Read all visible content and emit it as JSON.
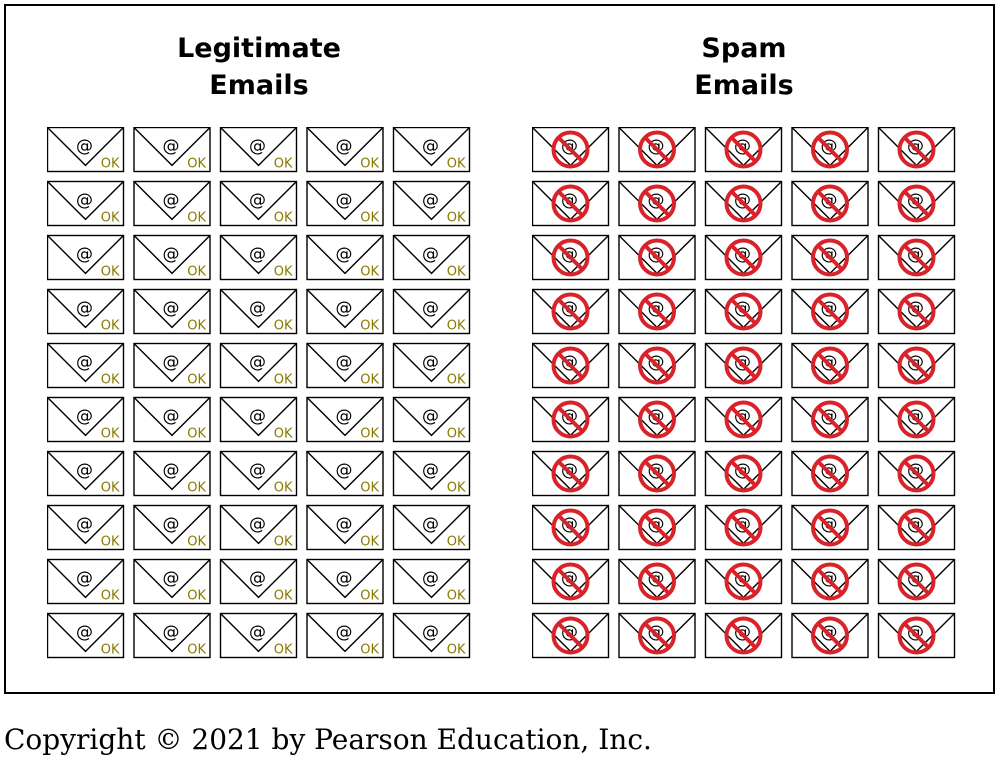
{
  "panels": {
    "legitimate": {
      "title_line1": "Legitimate",
      "title_line2": "Emails",
      "envelope_symbol": "@",
      "envelope_badge": "OK",
      "badge_color": "#8a7a00",
      "rows": 10,
      "columns": 5,
      "icon": "envelope-ok-icon"
    },
    "spam": {
      "title_line1": "Spam",
      "title_line2": "Emails",
      "envelope_symbol": "@",
      "prohibit_color": "#d8232a",
      "rows": 10,
      "columns": 5,
      "icon": "envelope-spam-prohibited-icon"
    }
  },
  "copyright": "Copyright © 2021 by Pearson Education, Inc."
}
